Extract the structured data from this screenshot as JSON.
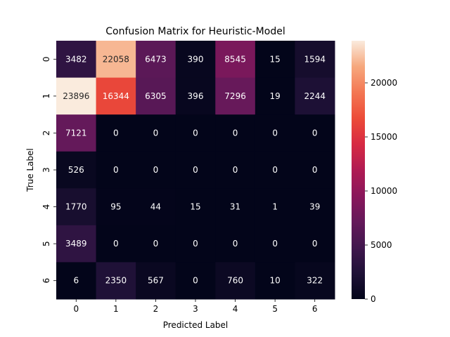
{
  "chart_data": {
    "type": "heatmap",
    "title": "Confusion Matrix for Heuristic-Model",
    "xlabel": "Predicted Label",
    "ylabel": "True Label",
    "x_categories": [
      "0",
      "1",
      "2",
      "3",
      "4",
      "5",
      "6"
    ],
    "y_categories": [
      "0",
      "1",
      "2",
      "3",
      "4",
      "5",
      "6"
    ],
    "values": [
      [
        3482,
        22058,
        6473,
        390,
        8545,
        15,
        1594
      ],
      [
        23896,
        16344,
        6305,
        396,
        7296,
        19,
        2244
      ],
      [
        7121,
        0,
        0,
        0,
        0,
        0,
        0
      ],
      [
        526,
        0,
        0,
        0,
        0,
        0,
        0
      ],
      [
        1770,
        95,
        44,
        15,
        31,
        1,
        39
      ],
      [
        3489,
        0,
        0,
        0,
        0,
        0,
        0
      ],
      [
        6,
        2350,
        567,
        0,
        760,
        10,
        322
      ]
    ],
    "colorbar": {
      "ticks": [
        0,
        5000,
        10000,
        15000,
        20000
      ],
      "range": [
        0,
        23896
      ],
      "colormap": "rocket"
    },
    "annotate_cells": true
  }
}
